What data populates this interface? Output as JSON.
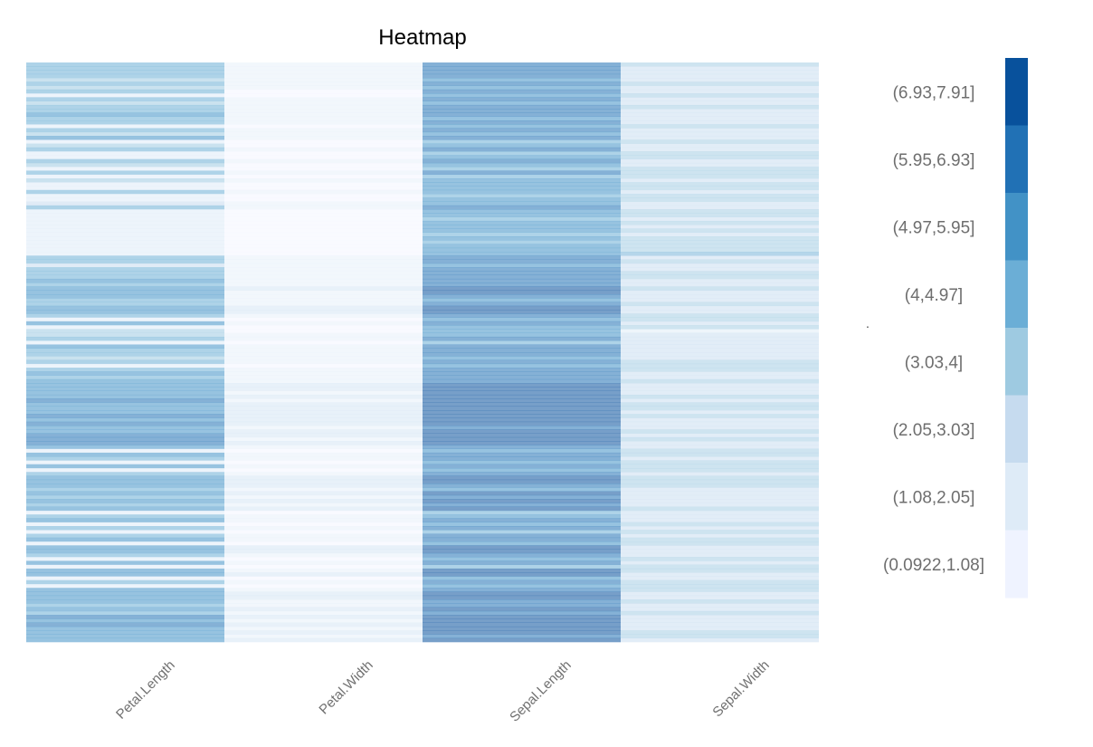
{
  "chart_data": {
    "type": "heatmap",
    "title": "Heatmap",
    "xlabel": "",
    "ylabel": "",
    "columns": [
      "Petal.Length",
      "Petal.Width",
      "Sepal.Length",
      "Sepal.Width"
    ],
    "row_count": 150,
    "value_range": [
      0.0922,
      7.91
    ],
    "legend_position": "right",
    "legend": {
      "bins": [
        {
          "label": "(6.93,7.91]",
          "color": "#08519c"
        },
        {
          "label": "(5.95,6.93]",
          "color": "#2171b5"
        },
        {
          "label": "(4.97,5.95]",
          "color": "#4292c6"
        },
        {
          "label": "(4,4.97]",
          "color": "#6baed6"
        },
        {
          "label": "(3.03,4]",
          "color": "#9ecae1"
        },
        {
          "label": "(2.05,3.03]",
          "color": "#c6dbef"
        },
        {
          "label": "(1.08,2.05]",
          "color": "#deebf7"
        },
        {
          "label": "(0.0922,1.08]",
          "color": "#eff3ff"
        }
      ]
    },
    "values": {
      "Petal.Length": [
        4.7,
        4.6,
        4.5,
        4.9,
        4.0,
        4.8,
        3.9,
        4.4,
        1.4,
        4.6,
        4.0,
        4.9,
        4.5,
        5.1,
        4.3,
        4.6,
        1.5,
        4.8,
        3.6,
        5.0,
        1.3,
        3.5,
        4.7,
        1.4,
        1.5,
        4.5,
        3.3,
        1.6,
        4.5,
        1.4,
        3.9,
        1.5,
        1.3,
        4.2,
        1.6,
        1.5,
        3.0,
        4.7,
        1.4,
        1.5,
        1.3,
        1.4,
        1.2,
        1.5,
        1.4,
        1.3,
        1.6,
        1.5,
        1.4,
        1.5,
        4.2,
        4.4,
        3.0,
        4.6,
        4.5,
        4.9,
        5.1,
        4.4,
        5.5,
        5.8,
        5.1,
        4.1,
        4.9,
        5.6,
        5.3,
        4.5,
        1.4,
        5.1,
        1.5,
        3.3,
        4.0,
        4.6,
        1.3,
        5.0,
        4.8,
        4.7,
        3.8,
        4.5,
        1.5,
        4.9,
        5.0,
        4.6,
        5.1,
        5.4,
        5.2,
        5.5,
        5.6,
        6.1,
        5.3,
        5.9,
        5.8,
        6.6,
        5.7,
        6.0,
        5.1,
        5.6,
        6.1,
        6.4,
        6.0,
        5.5,
        1.6,
        5.1,
        4.9,
        1.4,
        5.3,
        1.5,
        4.4,
        5.8,
        5.7,
        5.5,
        4.1,
        5.6,
        4.8,
        5.9,
        4.5,
        5.4,
        1.4,
        4.2,
        5.0,
        1.7,
        4.7,
        1.5,
        4.9,
        5.1,
        1.2,
        5.6,
        5.7,
        4.8,
        1.5,
        5.0,
        1.3,
        5.3,
        5.9,
        1.4,
        4.7,
        1.5,
        5.1,
        5.6,
        5.2,
        5.0,
        4.6,
        5.5,
        4.9,
        6.1,
        5.3,
        6.0,
        5.8,
        5.9,
        5.1,
        5.7
      ],
      "Petal.Width": [
        1.4,
        1.5,
        1.5,
        1.3,
        1.5,
        1.3,
        1.6,
        1.0,
        0.2,
        1.3,
        1.4,
        1.5,
        1.3,
        1.6,
        1.1,
        1.4,
        0.4,
        1.8,
        1.3,
        1.7,
        0.2,
        1.0,
        1.4,
        0.2,
        0.3,
        1.2,
        1.0,
        0.2,
        1.6,
        0.1,
        1.1,
        0.2,
        0.4,
        1.3,
        0.2,
        0.4,
        1.1,
        1.4,
        0.2,
        0.1,
        0.2,
        0.3,
        0.2,
        0.2,
        0.1,
        0.3,
        0.2,
        0.1,
        0.2,
        0.4,
        1.3,
        1.4,
        1.1,
        1.5,
        1.5,
        1.8,
        1.9,
        1.4,
        2.1,
        1.8,
        1.5,
        1.3,
        1.5,
        2.2,
        2.3,
        1.5,
        0.3,
        1.8,
        0.2,
        1.0,
        1.3,
        1.4,
        0.2,
        1.9,
        1.8,
        1.2,
        1.1,
        1.5,
        0.2,
        2.0,
        1.5,
        1.5,
        2.0,
        2.1,
        2.3,
        1.8,
        2.4,
        1.9,
        2.3,
        2.1,
        2.2,
        2.1,
        2.3,
        2.5,
        1.9,
        2.1,
        2.3,
        2.0,
        2.5,
        1.8,
        0.2,
        1.9,
        1.8,
        0.2,
        1.9,
        0.2,
        1.4,
        2.2,
        2.1,
        2.1,
        1.3,
        2.4,
        1.8,
        2.3,
        1.6,
        2.3,
        0.2,
        1.2,
        2.0,
        0.4,
        1.5,
        0.1,
        1.5,
        1.9,
        0.2,
        2.2,
        2.3,
        1.8,
        0.2,
        1.5,
        0.2,
        1.9,
        2.1,
        0.2,
        1.6,
        0.2,
        1.8,
        2.4,
        2.3,
        1.9,
        1.4,
        2.1,
        1.8,
        2.3,
        1.9,
        2.5,
        1.8,
        2.3,
        1.8,
        2.5
      ],
      "Sepal.Length": [
        6.4,
        6.2,
        6.0,
        6.3,
        5.5,
        6.7,
        5.6,
        6.1,
        5.0,
        6.6,
        5.8,
        6.9,
        6.0,
        6.5,
        5.6,
        6.1,
        5.4,
        6.3,
        5.7,
        6.7,
        4.7,
        5.0,
        6.1,
        4.6,
        5.0,
        6.2,
        5.0,
        4.8,
        6.0,
        4.9,
        5.6,
        5.3,
        5.4,
        5.7,
        4.8,
        5.1,
        5.1,
        6.8,
        5.0,
        5.2,
        4.4,
        5.2,
        5.0,
        5.4,
        4.3,
        5.0,
        4.7,
        5.2,
        5.1,
        5.7,
        6.1,
        6.7,
        5.1,
        6.3,
        6.4,
        6.9,
        6.8,
        6.6,
        7.2,
        7.3,
        6.5,
        5.7,
        6.9,
        7.6,
        7.7,
        6.7,
        5.1,
        6.8,
        5.2,
        5.0,
        5.5,
        6.1,
        4.5,
        6.3,
        6.2,
        6.6,
        5.5,
        6.4,
        5.4,
        6.7,
        6.3,
        6.5,
        6.9,
        7.2,
        7.4,
        7.1,
        7.0,
        7.7,
        7.2,
        7.5,
        7.3,
        7.9,
        7.4,
        7.6,
        6.8,
        7.0,
        7.7,
        7.9,
        7.5,
        6.7,
        5.1,
        6.9,
        6.4,
        5.0,
        6.8,
        5.4,
        6.0,
        7.2,
        7.0,
        6.9,
        5.8,
        7.1,
        6.3,
        7.3,
        6.1,
        7.0,
        4.9,
        5.9,
        6.5,
        5.4,
        6.6,
        4.9,
        6.5,
        6.7,
        5.8,
        7.1,
        7.3,
        6.4,
        5.1,
        6.8,
        4.6,
        7.0,
        7.6,
        5.0,
        6.4,
        5.1,
        6.9,
        7.2,
        7.1,
        6.8,
        6.5,
        7.4,
        6.7,
        7.7,
        7.2,
        7.6,
        7.3,
        7.5,
        6.8,
        7.5
      ],
      "Sepal.Width": [
        3.2,
        2.9,
        2.2,
        2.5,
        2.4,
        3.1,
        2.9,
        2.8,
        3.6,
        2.9,
        2.7,
        3.1,
        2.2,
        2.8,
        2.5,
        2.8,
        3.9,
        2.5,
        2.8,
        3.0,
        3.2,
        2.3,
        2.6,
        3.1,
        3.4,
        2.2,
        2.3,
        3.4,
        3.4,
        3.1,
        2.7,
        3.7,
        3.9,
        2.8,
        3.1,
        3.8,
        2.5,
        2.8,
        3.5,
        3.4,
        2.9,
        3.4,
        3.0,
        3.4,
        3.0,
        3.5,
        3.2,
        3.5,
        3.5,
        4.4,
        2.9,
        3.1,
        2.5,
        2.5,
        3.2,
        3.1,
        2.8,
        3.0,
        3.2,
        2.9,
        3.0,
        2.8,
        3.1,
        3.0,
        2.6,
        3.1,
        3.3,
        3.0,
        3.4,
        2.0,
        2.5,
        3.0,
        2.3,
        2.5,
        2.8,
        2.9,
        2.6,
        3.2,
        3.9,
        3.3,
        2.8,
        3.0,
        3.2,
        3.0,
        2.8,
        3.0,
        3.2,
        2.6,
        3.6,
        3.6,
        2.9,
        3.8,
        2.8,
        3.0,
        2.8,
        3.2,
        3.0,
        3.8,
        3.0,
        3.0,
        3.8,
        3.1,
        2.7,
        3.3,
        3.2,
        3.7,
        2.2,
        3.6,
        3.2,
        3.1,
        2.7,
        3.0,
        2.7,
        2.9,
        2.8,
        3.2,
        3.0,
        3.0,
        3.0,
        3.9,
        3.0,
        3.6,
        3.0,
        3.3,
        4.0,
        3.0,
        2.9,
        2.8,
        3.8,
        2.8,
        3.6,
        3.2,
        3.0,
        3.0,
        3.2,
        3.5,
        3.1,
        3.0,
        3.0,
        3.2,
        3.0,
        2.8,
        3.3,
        3.0,
        3.0,
        3.0,
        2.9,
        3.1,
        3.2,
        2.8
      ]
    },
    "column_opacity": {
      "Petal.Length": 0.55,
      "Petal.Width": 0.4,
      "Sepal.Length": 0.55,
      "Sepal.Width": 0.5
    },
    "stray_mark": "."
  }
}
